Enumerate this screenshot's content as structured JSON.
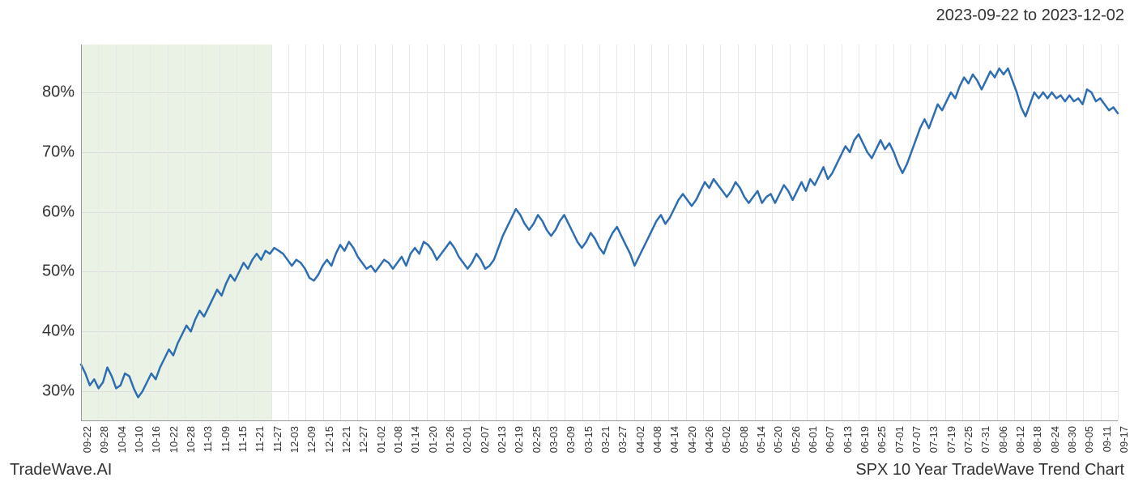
{
  "header": {
    "date_range": "2023-09-22 to 2023-12-02"
  },
  "footer": {
    "left": "TradeWave.AI",
    "right": "SPX 10 Year TradeWave Trend Chart"
  },
  "chart": {
    "type": "line",
    "background_color": "#ffffff",
    "grid_color_major": "#dddddd",
    "grid_color_minor": "#e8e8e8",
    "axis_color": "#999999",
    "line_color": "#2e6eb0",
    "line_width": 2.5,
    "highlight_color": "#d8e8d0",
    "highlight_opacity": 0.55,
    "highlight_start_index": 0,
    "highlight_end_index": 11,
    "ylim": [
      25,
      88
    ],
    "yticks": [
      30,
      40,
      50,
      60,
      70,
      80
    ],
    "ytick_labels": [
      "30%",
      "40%",
      "50%",
      "60%",
      "70%",
      "80%"
    ],
    "title_fontsize": 20,
    "axis_label_fontsize": 20,
    "xtick_fontsize": 13,
    "xtick_rotation": -90,
    "xticks": [
      "09-22",
      "09-28",
      "10-04",
      "10-10",
      "10-16",
      "10-22",
      "10-28",
      "11-03",
      "11-09",
      "11-15",
      "11-21",
      "11-27",
      "12-03",
      "12-09",
      "12-15",
      "12-21",
      "12-27",
      "01-02",
      "01-08",
      "01-14",
      "01-20",
      "01-26",
      "02-01",
      "02-07",
      "02-13",
      "02-19",
      "02-25",
      "03-03",
      "03-09",
      "03-15",
      "03-21",
      "03-27",
      "04-02",
      "04-08",
      "04-14",
      "04-20",
      "04-26",
      "05-02",
      "05-08",
      "05-14",
      "05-20",
      "05-26",
      "06-01",
      "06-07",
      "06-13",
      "06-19",
      "06-25",
      "07-01",
      "07-07",
      "07-13",
      "07-19",
      "07-25",
      "07-31",
      "08-06",
      "08-12",
      "08-18",
      "08-24",
      "08-30",
      "09-05",
      "09-11",
      "09-17"
    ],
    "series": {
      "values": [
        34.5,
        33.0,
        31.0,
        32.0,
        30.5,
        31.5,
        34.0,
        32.5,
        30.5,
        31.0,
        33.0,
        32.5,
        30.5,
        29.0,
        30.0,
        31.5,
        33.0,
        32.0,
        34.0,
        35.5,
        37.0,
        36.0,
        38.0,
        39.5,
        41.0,
        40.0,
        42.0,
        43.5,
        42.5,
        44.0,
        45.5,
        47.0,
        46.0,
        48.0,
        49.5,
        48.5,
        50.0,
        51.5,
        50.5,
        52.0,
        53.0,
        52.0,
        53.5,
        53.0,
        54.0,
        53.5,
        53.0,
        52.0,
        51.0,
        52.0,
        51.5,
        50.5,
        49.0,
        48.5,
        49.5,
        51.0,
        52.0,
        51.0,
        53.0,
        54.5,
        53.5,
        55.0,
        54.0,
        52.5,
        51.5,
        50.5,
        51.0,
        50.0,
        51.0,
        52.0,
        51.5,
        50.5,
        51.5,
        52.5,
        51.0,
        53.0,
        54.0,
        53.0,
        55.0,
        54.5,
        53.5,
        52.0,
        53.0,
        54.0,
        55.0,
        54.0,
        52.5,
        51.5,
        50.5,
        51.5,
        53.0,
        52.0,
        50.5,
        51.0,
        52.0,
        54.0,
        56.0,
        57.5,
        59.0,
        60.5,
        59.5,
        58.0,
        57.0,
        58.0,
        59.5,
        58.5,
        57.0,
        56.0,
        57.0,
        58.5,
        59.5,
        58.0,
        56.5,
        55.0,
        54.0,
        55.0,
        56.5,
        55.5,
        54.0,
        53.0,
        55.0,
        56.5,
        57.5,
        56.0,
        54.5,
        53.0,
        51.0,
        52.5,
        54.0,
        55.5,
        57.0,
        58.5,
        59.5,
        58.0,
        59.0,
        60.5,
        62.0,
        63.0,
        62.0,
        61.0,
        62.0,
        63.5,
        65.0,
        64.0,
        65.5,
        64.5,
        63.5,
        62.5,
        63.5,
        65.0,
        64.0,
        62.5,
        61.5,
        62.5,
        63.5,
        61.5,
        62.5,
        63.0,
        61.5,
        63.0,
        64.5,
        63.5,
        62.0,
        63.5,
        65.0,
        63.5,
        65.5,
        64.5,
        66.0,
        67.5,
        65.5,
        66.5,
        68.0,
        69.5,
        71.0,
        70.0,
        72.0,
        73.0,
        71.5,
        70.0,
        69.0,
        70.5,
        72.0,
        70.5,
        71.5,
        70.0,
        68.0,
        66.5,
        68.0,
        70.0,
        72.0,
        74.0,
        75.5,
        74.0,
        76.0,
        78.0,
        77.0,
        78.5,
        80.0,
        79.0,
        81.0,
        82.5,
        81.5,
        83.0,
        82.0,
        80.5,
        82.0,
        83.5,
        82.5,
        84.0,
        83.0,
        84.0,
        82.0,
        80.0,
        77.5,
        76.0,
        78.0,
        80.0,
        79.0,
        80.0,
        79.0,
        80.0,
        79.0,
        79.5,
        78.5,
        79.5,
        78.5,
        79.0,
        78.0,
        80.5,
        80.0,
        78.5,
        79.0,
        78.0,
        77.0,
        77.5,
        76.5
      ]
    }
  }
}
